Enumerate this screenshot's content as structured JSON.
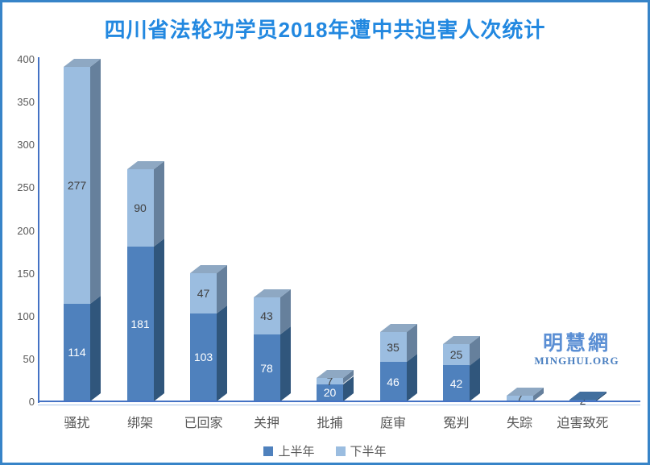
{
  "title": "四川省法轮功学员2018年遭中共迫害人次统计",
  "logo": {
    "cn": "明慧網",
    "en": "MINGHUI.ORG"
  },
  "colors": {
    "title_blue": "#2288e0",
    "frame_border": "#3784c8",
    "axis_line": "#4472c4",
    "axis_shadow_line": "#a9c5e8",
    "tick_text": "#595959",
    "label_dark_text": "#404040",
    "label_light_text": "#ffffff"
  },
  "chart_data": {
    "type": "bar",
    "stacked": true,
    "grid": false,
    "legend_position": "bottom",
    "title": "四川省法轮功学员2018年遭中共迫害人次统计",
    "xlabel": "",
    "ylabel": "",
    "ylim": [
      0,
      400
    ],
    "yticks": [
      0,
      50,
      100,
      150,
      200,
      250,
      300,
      350,
      400
    ],
    "categories": [
      "骚扰",
      "绑架",
      "已回家",
      "关押",
      "批捕",
      "庭审",
      "冤判",
      "失踪",
      "迫害致死"
    ],
    "series": [
      {
        "name": "上半年",
        "values": [
          114,
          181,
          103,
          78,
          20,
          46,
          42,
          0,
          2
        ],
        "front": "#4f81bd",
        "side": "#30567c",
        "top": "#426f9e",
        "label_color": "#ffffff"
      },
      {
        "name": "下半年",
        "values": [
          277,
          90,
          47,
          43,
          7,
          35,
          25,
          7,
          0
        ],
        "front": "#9bbde0",
        "side": "#66809c",
        "top": "#8ea8c3",
        "label_color": "#404040"
      }
    ]
  }
}
